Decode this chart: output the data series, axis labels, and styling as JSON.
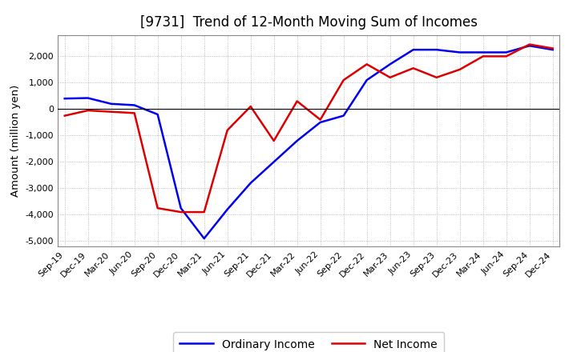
{
  "title": "[9731]  Trend of 12-Month Moving Sum of Incomes",
  "ylabel": "Amount (million yen)",
  "background_color": "#ffffff",
  "grid_color": "#999999",
  "x_labels": [
    "Sep-19",
    "Dec-19",
    "Mar-20",
    "Jun-20",
    "Sep-20",
    "Dec-20",
    "Mar-21",
    "Jun-21",
    "Sep-21",
    "Dec-21",
    "Mar-22",
    "Jun-22",
    "Sep-22",
    "Dec-22",
    "Mar-23",
    "Jun-23",
    "Sep-23",
    "Dec-23",
    "Mar-24",
    "Jun-24",
    "Sep-24",
    "Dec-24"
  ],
  "ordinary_income": [
    400,
    420,
    200,
    150,
    -200,
    -3750,
    -4900,
    -3800,
    -2800,
    -2000,
    -1200,
    -500,
    -250,
    1100,
    1700,
    2250,
    2250,
    2150,
    2150,
    2150,
    2400,
    2250
  ],
  "net_income": [
    -250,
    -50,
    -100,
    -150,
    -3750,
    -3900,
    -3900,
    -800,
    100,
    -1200,
    300,
    -400,
    1100,
    1700,
    1200,
    1550,
    1200,
    1500,
    2000,
    2000,
    2450,
    2300
  ],
  "ordinary_color": "#0000ee",
  "net_color": "#dd0000",
  "ylim": [
    -5200,
    2800
  ],
  "yticks": [
    -5000,
    -4000,
    -3000,
    -2000,
    -1000,
    0,
    1000,
    2000
  ],
  "line_width": 1.8,
  "title_fontsize": 12,
  "legend_fontsize": 10,
  "tick_fontsize": 8
}
